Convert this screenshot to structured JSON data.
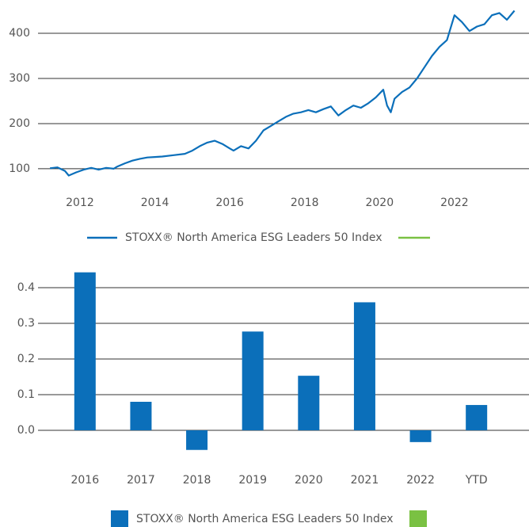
{
  "chart_data": [
    {
      "type": "line",
      "x": [
        2011.2,
        2011.4,
        2011.6,
        2011.7,
        2011.9,
        2012.1,
        2012.3,
        2012.5,
        2012.7,
        2012.9,
        2013.0,
        2013.2,
        2013.4,
        2013.6,
        2013.8,
        2014.0,
        2014.2,
        2014.5,
        2014.8,
        2015.0,
        2015.2,
        2015.4,
        2015.6,
        2015.8,
        2016.0,
        2016.1,
        2016.3,
        2016.5,
        2016.7,
        2016.9,
        2017.1,
        2017.3,
        2017.5,
        2017.7,
        2017.9,
        2018.1,
        2018.3,
        2018.5,
        2018.7,
        2018.9,
        2019.1,
        2019.3,
        2019.5,
        2019.7,
        2019.9,
        2020.1,
        2020.2,
        2020.3,
        2020.4,
        2020.6,
        2020.8,
        2021.0,
        2021.2,
        2021.4,
        2021.6,
        2021.8,
        2022.0,
        2022.2,
        2022.4,
        2022.6,
        2022.8,
        2023.0,
        2023.2,
        2023.4,
        2023.6
      ],
      "series": [
        {
          "name": "STOXX® North America ESG Leaders 50 Index",
          "color": "#0b6fba",
          "values": [
            101,
            103,
            95,
            85,
            92,
            98,
            102,
            98,
            102,
            100,
            105,
            112,
            118,
            122,
            125,
            126,
            127,
            130,
            133,
            140,
            150,
            158,
            162,
            155,
            145,
            140,
            150,
            145,
            162,
            185,
            195,
            205,
            215,
            222,
            225,
            230,
            225,
            232,
            238,
            218,
            230,
            240,
            235,
            245,
            258,
            275,
            240,
            225,
            255,
            270,
            280,
            300,
            325,
            350,
            370,
            385,
            440,
            425,
            405,
            415,
            420,
            440,
            445,
            430,
            450
          ]
        }
      ],
      "legend_extra_color": "#7ac143",
      "xlim": [
        2010.88,
        2023.99
      ],
      "xticks": [
        2012,
        2014,
        2016,
        2018,
        2020,
        2022
      ],
      "ylim": [
        70,
        465
      ],
      "yticks": [
        100,
        200,
        300,
        400
      ],
      "grid": true
    },
    {
      "type": "bar",
      "categories": [
        "2016",
        "2017",
        "2018",
        "2019",
        "2020",
        "2021",
        "2022",
        "YTD"
      ],
      "series": [
        {
          "name": "STOXX® North America ESG Leaders 50 Index",
          "color": "#0b6fba",
          "values": [
            0.443,
            0.08,
            -0.055,
            0.277,
            0.153,
            0.359,
            -0.033,
            0.071
          ]
        }
      ],
      "legend_extra_color": "#7ac143",
      "ylim": [
        -0.08,
        0.45
      ],
      "yticks": [
        {
          "value": 0,
          "label": "0.0"
        },
        0.1,
        0.2,
        0.3,
        0.4
      ],
      "grid": true
    }
  ]
}
